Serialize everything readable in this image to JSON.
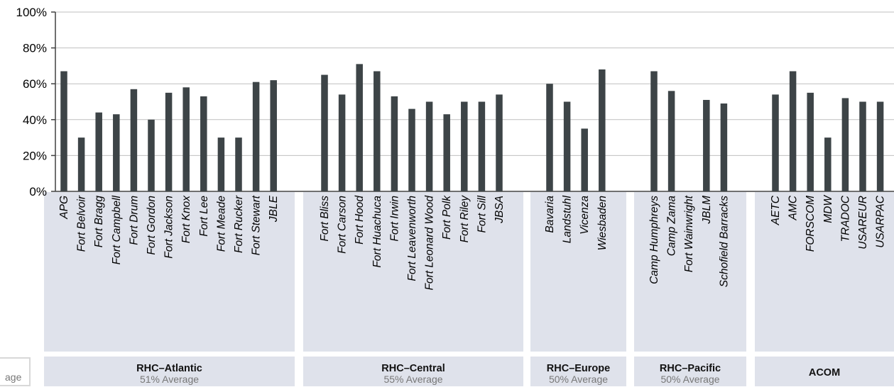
{
  "chart_data": {
    "type": "bar",
    "ylim": [
      0,
      100
    ],
    "yticks": [
      0,
      20,
      40,
      60,
      80,
      100
    ],
    "ytick_format": "%",
    "grid": true,
    "colors": {
      "bar": "#3d4447",
      "grid": "#bfbfbf",
      "panel": "#dfe2eb",
      "axis": "#404040"
    },
    "groups": [
      {
        "name": "RHC–Atlantic",
        "average": "51% Average",
        "categories": [
          "APG",
          "Fort Belvoir",
          "Fort Bragg",
          "Fort Campbell",
          "Fort Drum",
          "Fort Gordon",
          "Fort Jackson",
          "Fort Knox",
          "Fort Lee",
          "Fort Meade",
          "Fort Rucker",
          "Fort Stewart",
          "JBLE"
        ],
        "values": [
          67,
          30,
          44,
          43,
          57,
          40,
          55,
          58,
          53,
          30,
          30,
          61,
          62
        ]
      },
      {
        "name": "RHC–Central",
        "average": "55% Average",
        "categories": [
          "Fort Bliss",
          "Fort Carson",
          "Fort Hood",
          "Fort Huachuca",
          "Fort Irwin",
          "Fort Leavenworth",
          "Fort Leonard Wood",
          "Fort Polk",
          "Fort Riley",
          "Fort Sill",
          "JBSA"
        ],
        "values": [
          65,
          54,
          71,
          67,
          53,
          46,
          50,
          43,
          50,
          50,
          54
        ]
      },
      {
        "name": "RHC–Europe",
        "average": "50% Average",
        "categories": [
          "Bavaria",
          "Landstuhl",
          "Vicenza",
          "Wiesbaden"
        ],
        "values": [
          60,
          50,
          35,
          68
        ]
      },
      {
        "name": "RHC–Pacific",
        "average": "50% Average",
        "categories": [
          "Camp Humphreys",
          "Camp Zama",
          "Fort Wainwright",
          "JBLM",
          "Schofield Barracks"
        ],
        "values": [
          67,
          56,
          null,
          51,
          49
        ]
      },
      {
        "name": "ACOM",
        "average": "",
        "categories": [
          "AETC",
          "AMC",
          "FORSCOM",
          "MDW",
          "TRADOC",
          "USAREUR",
          "USARPAC"
        ],
        "values": [
          54,
          67,
          55,
          30,
          52,
          50,
          50
        ]
      }
    ],
    "legend_fragment": "age"
  }
}
